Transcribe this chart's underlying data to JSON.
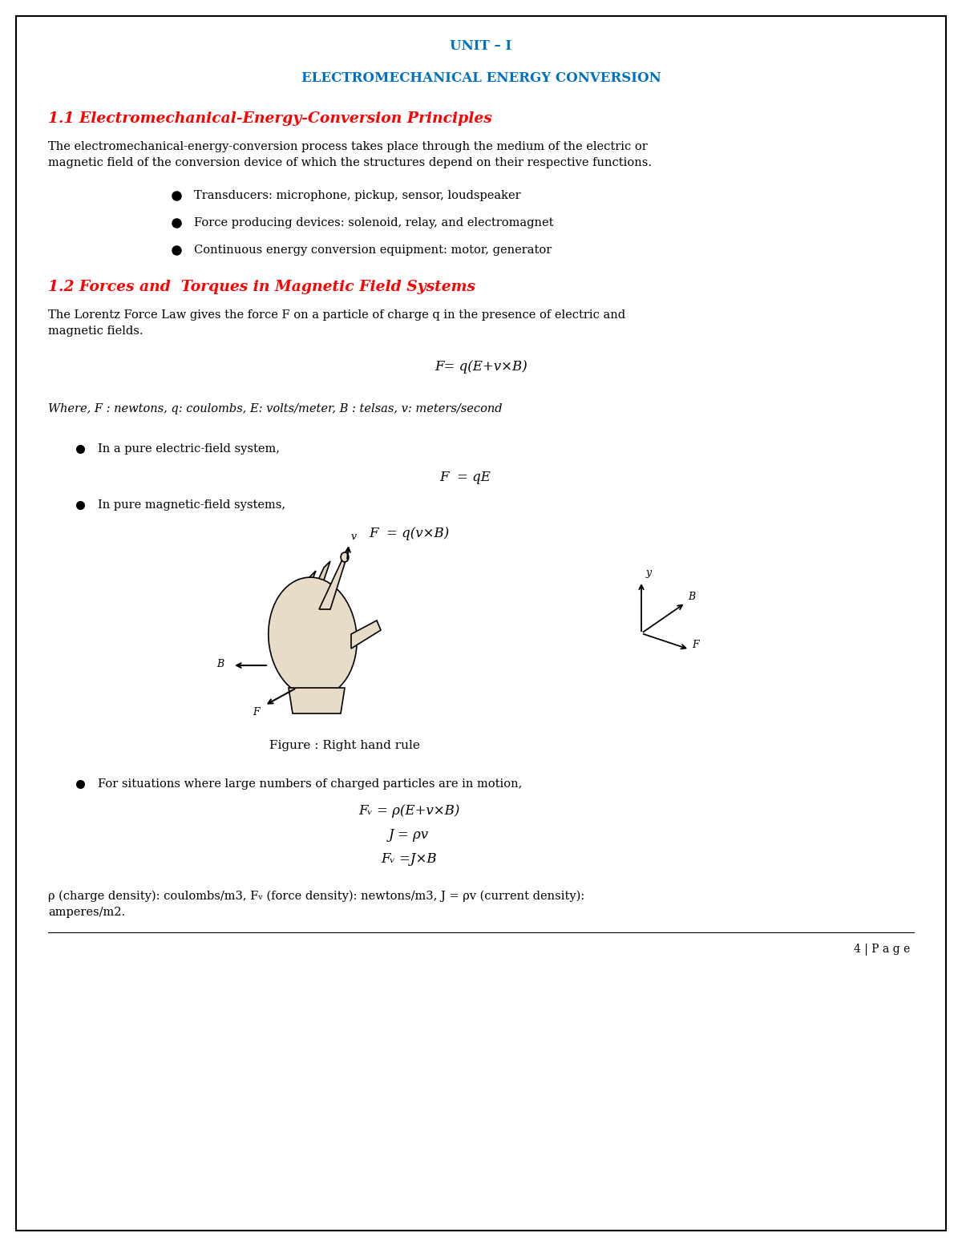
{
  "page_bg": "#ffffff",
  "border_color": "#000000",
  "heading_color": "#0070C0",
  "subheading_color": "#FF0000",
  "body_color": "#000000",
  "unit_title": "UNIT – I",
  "main_title": "ELECTROMECHANICAL ENERGY CONVERSION",
  "section1_heading": "1.1 Electromechanical-Energy-Conversion Principles",
  "section1_body_line1": "The electromechanical-energy-conversion process takes place through the medium of the electric or",
  "section1_body_line2": "magnetic field of the conversion device of which the structures depend on their respective functions.",
  "bullet1": "Transducers: microphone, pickup, sensor, loudspeaker",
  "bullet2": "Force producing devices: solenoid, relay, and electromagnet",
  "bullet3": "Continuous energy conversion equipment: motor, generator",
  "section2_heading": "1.2 Forces and  Torques in Magnetic Field Systems",
  "section2_body_line1": "The Lorentz Force Law gives the force F on a particle of charge q in the presence of electric and",
  "section2_body_line2": "magnetic fields.",
  "formula1": "F= q(E+v×B)",
  "where_text": "Where, F : newtons, q: coulombs, E: volts/meter, B : telsas, v: meters/second",
  "bullet4": "In a pure electric-field system,",
  "formula2": "F  = qE",
  "bullet5": "In pure magnetic-field systems,",
  "formula3": "F  = q(v×B)",
  "figure_caption": "Figure : Right hand rule",
  "bullet6": "For situations where large numbers of charged particles are in motion,",
  "formula4": "Fᵥ = ρ(E+v×B)",
  "formula5": "J = ρv",
  "formula6": "Fᵥ =J×B",
  "bottom_line1": "ρ (charge density): coulombs/m3, Fᵥ (force density): newtons/m3, J = ρv (current density):",
  "bottom_line2": "amperes/m2.",
  "page_number": "4 | P a g e",
  "fig_width": 12.0,
  "fig_height": 15.53,
  "dpi": 100
}
